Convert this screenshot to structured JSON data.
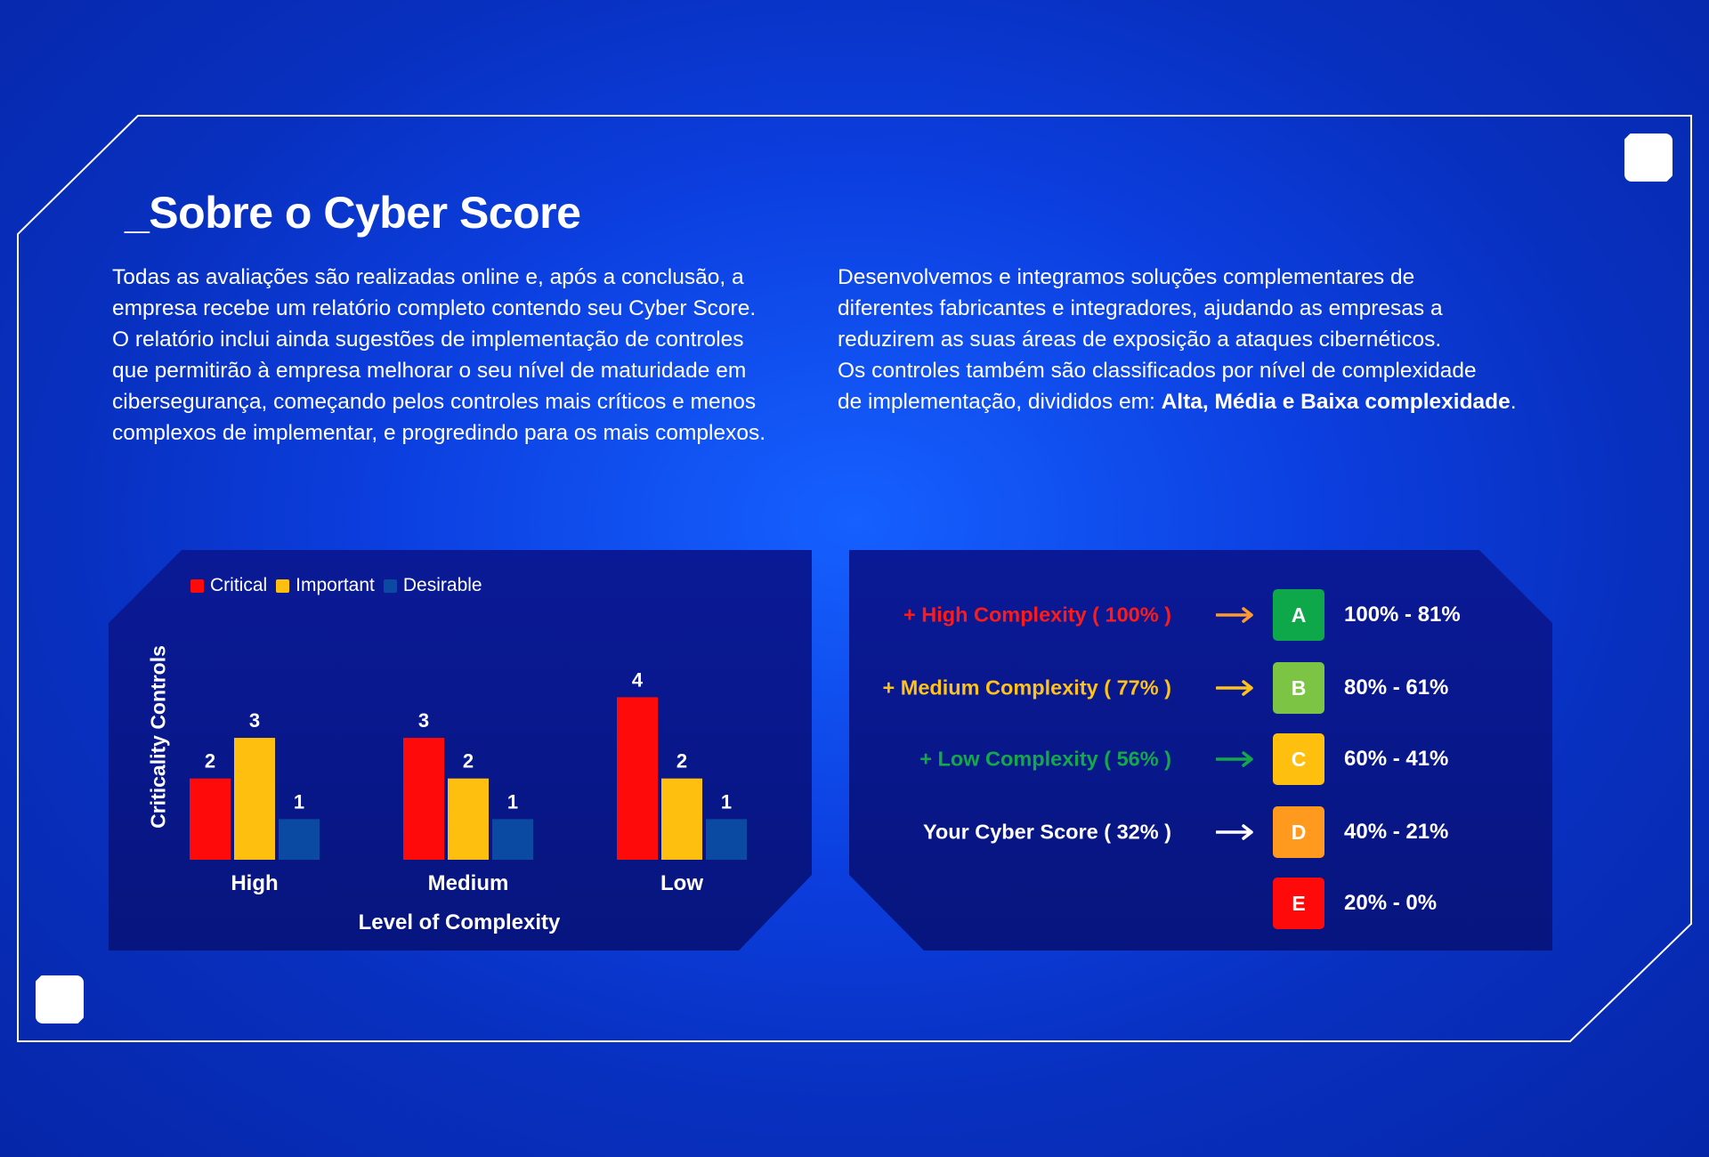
{
  "heading": "_Sobre o Cyber Score",
  "intro_left": [
    "Todas as avaliações são realizadas online e, após a conclusão, a",
    "empresa recebe um relatório completo contendo seu Cyber Score.",
    "O relatório inclui ainda sugestões de implementação de controles",
    "que permitirão à empresa melhorar o seu nível de maturidade em",
    "cibersegurança, começando pelos controles mais críticos e menos",
    "complexos de implementar, e progredindo para os mais complexos."
  ],
  "intro_right": {
    "lines": [
      "Desenvolvemos e integramos soluções complementares de",
      "diferentes fabricantes e integradores, ajudando as empresas a",
      "reduzirem as suas áreas de exposição a ataques cibernéticos.",
      "Os controles também são classificados por nível de complexidade"
    ],
    "last_line_prefix": "de implementação, divididos em: ",
    "last_line_bold": "Alta, Média e Baixa complexidade",
    "last_line_suffix": "."
  },
  "chart_data": {
    "type": "bar",
    "categories": [
      "High",
      "Medium",
      "Low"
    ],
    "series": [
      {
        "name": "Critical",
        "color": "#ff0a0a",
        "values": [
          2,
          3,
          4
        ]
      },
      {
        "name": "Important",
        "color": "#ffbf0f",
        "values": [
          3,
          2,
          2
        ]
      },
      {
        "name": "Desirable",
        "color": "#0b4aa3",
        "values": [
          1,
          1,
          1
        ]
      }
    ],
    "xlabel": "Level of Complexity",
    "ylabel": "Criticality Controls",
    "ylim": [
      0,
      4.6
    ],
    "grid": false,
    "legend_position": "top-left",
    "data_labels": true
  },
  "score_scale": {
    "rows": [
      {
        "label": "+ High Complexity ( 100% )",
        "label_color": "#ff1a1a",
        "arrow_color": "#ff9a2e",
        "grade": "A",
        "grade_color": "#0ea84b",
        "range": "100% - 81%"
      },
      {
        "label": "+ Medium Complexity ( 77% )",
        "label_color": "#ffc21a",
        "arrow_color": "#ffc21a",
        "grade": "B",
        "grade_color": "#7cc444",
        "range": "80% - 61%"
      },
      {
        "label": "+ Low Complexity ( 56% )",
        "label_color": "#14a84a",
        "arrow_color": "#14a84a",
        "grade": "C",
        "grade_color": "#ffbf0f",
        "range": "60% - 41%"
      },
      {
        "label": "Your Cyber Score ( 32% )",
        "label_color": "#ffffff",
        "arrow_color": "#ffffff",
        "grade": "D",
        "grade_color": "#ff9a1f",
        "range": "40% - 21%"
      },
      {
        "label": "",
        "label_color": "#ffffff",
        "arrow_color": "",
        "grade": "E",
        "grade_color": "#ff0a0a",
        "range": "20% - 0%"
      }
    ]
  },
  "icons": {
    "corner_top_right": "square-marker-icon",
    "corner_bottom_left": "square-marker-icon"
  }
}
